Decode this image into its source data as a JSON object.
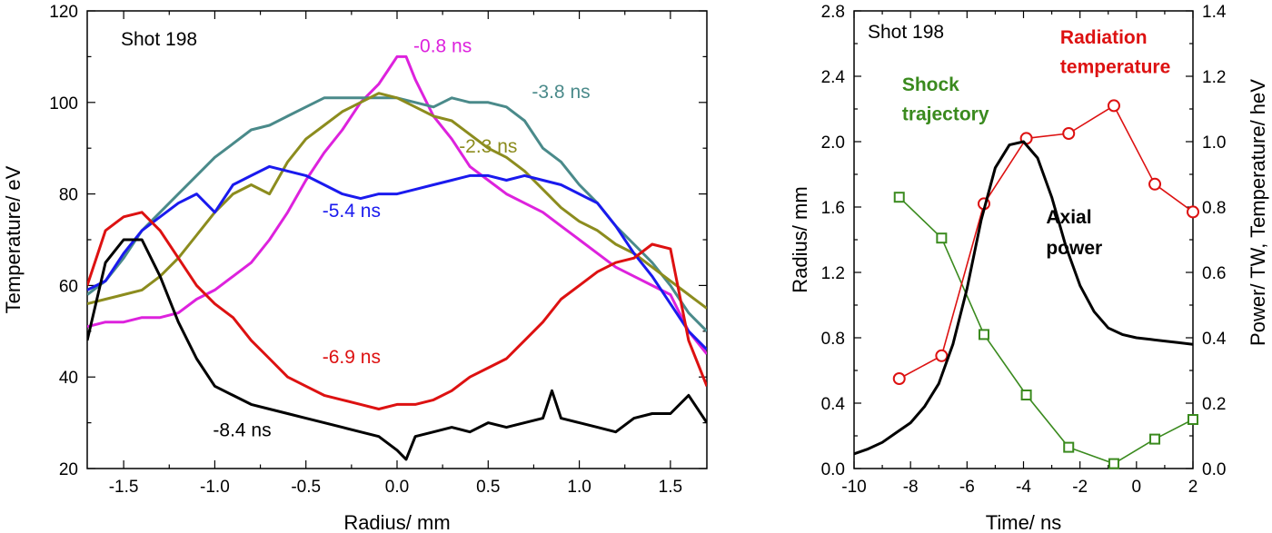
{
  "chart_data": [
    {
      "type": "line",
      "panel_label": "Shot 198",
      "xlabel": "Radius/ mm",
      "ylabel": "Temperature/ eV",
      "xlim": [
        -1.7,
        1.7
      ],
      "ylim": [
        20,
        120
      ],
      "xticks": [
        -1.5,
        -1.0,
        -0.5,
        0.0,
        0.5,
        1.0,
        1.5
      ],
      "xtick_labels": [
        "-1.5",
        "-1.0",
        "-0.5",
        "0.0",
        "0.5",
        "1.0",
        "1.5"
      ],
      "yticks": [
        20,
        40,
        60,
        80,
        100,
        120
      ],
      "ytick_labels": [
        "20",
        "40",
        "60",
        "80",
        "100",
        "120"
      ],
      "grid": false,
      "series": [
        {
          "name": "-0.8 ns",
          "color": "#dd22dd",
          "x": [
            -1.7,
            -1.6,
            -1.5,
            -1.4,
            -1.3,
            -1.2,
            -1.1,
            -1.0,
            -0.9,
            -0.8,
            -0.7,
            -0.6,
            -0.5,
            -0.4,
            -0.3,
            -0.2,
            -0.1,
            -0.05,
            0.0,
            0.05,
            0.1,
            0.2,
            0.3,
            0.4,
            0.5,
            0.6,
            0.7,
            0.8,
            0.9,
            1.0,
            1.1,
            1.2,
            1.3,
            1.4,
            1.5,
            1.6,
            1.7
          ],
          "y": [
            51,
            52,
            52,
            53,
            53,
            54,
            57,
            59,
            62,
            65,
            70,
            76,
            83,
            89,
            94,
            100,
            104,
            107,
            110,
            110,
            105,
            97,
            92,
            86,
            83,
            80,
            78,
            76,
            73,
            70,
            67,
            64,
            62,
            60,
            58,
            50,
            45
          ]
        },
        {
          "name": "-3.8 ns",
          "color": "#4a8a8a",
          "x": [
            -1.7,
            -1.6,
            -1.5,
            -1.4,
            -1.3,
            -1.2,
            -1.1,
            -1.0,
            -0.9,
            -0.8,
            -0.7,
            -0.6,
            -0.5,
            -0.4,
            -0.3,
            -0.2,
            -0.1,
            0.0,
            0.1,
            0.2,
            0.3,
            0.4,
            0.5,
            0.6,
            0.7,
            0.8,
            0.9,
            1.0,
            1.1,
            1.2,
            1.3,
            1.4,
            1.5,
            1.6,
            1.7
          ],
          "y": [
            58,
            61,
            66,
            72,
            76,
            80,
            84,
            88,
            91,
            94,
            95,
            97,
            99,
            101,
            101,
            101,
            101,
            101,
            100,
            99,
            101,
            100,
            100,
            99,
            96,
            90,
            87,
            82,
            78,
            73,
            69,
            65,
            60,
            54,
            50
          ]
        },
        {
          "name": "-2.3 ns",
          "color": "#8c8c1e",
          "x": [
            -1.7,
            -1.6,
            -1.5,
            -1.4,
            -1.3,
            -1.2,
            -1.1,
            -1.0,
            -0.9,
            -0.8,
            -0.7,
            -0.6,
            -0.5,
            -0.4,
            -0.3,
            -0.2,
            -0.1,
            0.0,
            0.1,
            0.2,
            0.3,
            0.4,
            0.5,
            0.6,
            0.7,
            0.8,
            0.9,
            1.0,
            1.1,
            1.2,
            1.3,
            1.4,
            1.5,
            1.6,
            1.7
          ],
          "y": [
            56,
            57,
            58,
            59,
            62,
            66,
            71,
            76,
            80,
            82,
            80,
            87,
            92,
            95,
            98,
            100,
            102,
            101,
            99,
            97,
            96,
            93,
            90,
            88,
            85,
            81,
            77,
            74,
            72,
            69,
            67,
            64,
            61,
            58,
            55
          ]
        },
        {
          "name": "-5.4 ns",
          "color": "#1a1aee",
          "x": [
            -1.7,
            -1.6,
            -1.5,
            -1.4,
            -1.3,
            -1.2,
            -1.1,
            -1.0,
            -0.9,
            -0.8,
            -0.7,
            -0.6,
            -0.5,
            -0.4,
            -0.3,
            -0.2,
            -0.1,
            0.0,
            0.1,
            0.2,
            0.3,
            0.4,
            0.5,
            0.6,
            0.7,
            0.8,
            0.9,
            1.0,
            1.1,
            1.2,
            1.3,
            1.4,
            1.5,
            1.6,
            1.7
          ],
          "y": [
            59,
            61,
            67,
            72,
            75,
            78,
            80,
            76,
            82,
            84,
            86,
            85,
            84,
            82,
            80,
            79,
            80,
            80,
            81,
            82,
            83,
            84,
            84,
            83,
            84,
            83,
            82,
            80,
            78,
            73,
            67,
            62,
            56,
            50,
            46
          ]
        },
        {
          "name": "-6.9 ns",
          "color": "#dd1111",
          "x": [
            -1.7,
            -1.6,
            -1.5,
            -1.4,
            -1.3,
            -1.2,
            -1.1,
            -1.0,
            -0.9,
            -0.8,
            -0.7,
            -0.6,
            -0.5,
            -0.4,
            -0.3,
            -0.2,
            -0.1,
            0.0,
            0.1,
            0.2,
            0.3,
            0.4,
            0.5,
            0.6,
            0.7,
            0.8,
            0.9,
            1.0,
            1.1,
            1.2,
            1.3,
            1.4,
            1.5,
            1.6,
            1.7
          ],
          "y": [
            60,
            72,
            75,
            76,
            72,
            66,
            60,
            56,
            53,
            48,
            44,
            40,
            38,
            36,
            35,
            34,
            33,
            34,
            34,
            35,
            37,
            40,
            42,
            44,
            48,
            52,
            57,
            60,
            63,
            65,
            66,
            69,
            68,
            48,
            38
          ]
        },
        {
          "name": "-8.4 ns",
          "color": "#000000",
          "x": [
            -1.7,
            -1.6,
            -1.5,
            -1.4,
            -1.3,
            -1.2,
            -1.1,
            -1.0,
            -0.9,
            -0.8,
            -0.7,
            -0.6,
            -0.5,
            -0.4,
            -0.3,
            -0.2,
            -0.1,
            0.0,
            0.05,
            0.1,
            0.2,
            0.3,
            0.4,
            0.5,
            0.6,
            0.7,
            0.8,
            0.85,
            0.9,
            1.0,
            1.1,
            1.2,
            1.3,
            1.4,
            1.5,
            1.6,
            1.7
          ],
          "y": [
            48,
            65,
            70,
            70,
            62,
            52,
            44,
            38,
            36,
            34,
            33,
            32,
            31,
            30,
            29,
            28,
            27,
            24,
            22,
            27,
            28,
            29,
            28,
            30,
            29,
            30,
            31,
            37,
            31,
            30,
            29,
            28,
            31,
            32,
            32,
            36,
            30
          ]
        }
      ],
      "annotations": [
        {
          "text": "-0.8 ns",
          "x": 0.25,
          "y": 111,
          "color": "#dd22dd"
        },
        {
          "text": "-3.8 ns",
          "x": 0.9,
          "y": 101,
          "color": "#4a8a8a"
        },
        {
          "text": "-2.3 ns",
          "x": 0.5,
          "y": 89,
          "color": "#8c8c1e"
        },
        {
          "text": "-5.4 ns",
          "x": -0.25,
          "y": 75,
          "color": "#1a1aee"
        },
        {
          "text": "-6.9 ns",
          "x": -0.25,
          "y": 43,
          "color": "#dd1111"
        },
        {
          "text": "-8.4 ns",
          "x": -0.85,
          "y": 27,
          "color": "#000000"
        }
      ]
    },
    {
      "type": "line",
      "panel_label": "Shot 198",
      "xlabel": "Time/ ns",
      "ylabel": "Radius/ mm",
      "ylabel_right": "Power/ TW, Temperature/ heV",
      "xlim": [
        -10,
        2
      ],
      "ylim": [
        0.0,
        2.8
      ],
      "ylim_right": [
        0.0,
        1.4
      ],
      "xticks": [
        -10,
        -8,
        -6,
        -4,
        -2,
        0,
        2
      ],
      "xtick_labels": [
        "-10",
        "-8",
        "-6",
        "-4",
        "-2",
        "0",
        "2"
      ],
      "yticks": [
        0.0,
        0.4,
        0.8,
        1.2,
        1.6,
        2.0,
        2.4,
        2.8
      ],
      "ytick_labels": [
        "0.0",
        "0.4",
        "0.8",
        "1.2",
        "1.6",
        "2.0",
        "2.4",
        "2.8"
      ],
      "yticks_right": [
        0.0,
        0.2,
        0.4,
        0.6,
        0.8,
        1.0,
        1.2,
        1.4
      ],
      "ytick_labels_right": [
        "0.0",
        "0.2",
        "0.4",
        "0.6",
        "0.8",
        "1.0",
        "1.2",
        "1.4"
      ],
      "grid": false,
      "series": [
        {
          "name": "Shock trajectory",
          "color": "#3a8a1e",
          "marker": "square",
          "axis": "left",
          "x": [
            -8.4,
            -6.9,
            -5.4,
            -3.9,
            -2.4,
            -0.8,
            0.65,
            2.0
          ],
          "y": [
            1.66,
            1.41,
            0.82,
            0.45,
            0.13,
            0.03,
            0.18,
            0.3
          ]
        },
        {
          "name": "Radiation temperature",
          "color": "#dd1111",
          "marker": "circle",
          "axis": "right",
          "x": [
            -8.4,
            -6.9,
            -5.4,
            -3.9,
            -2.4,
            -0.8,
            0.65,
            2.0
          ],
          "y": [
            0.275,
            0.345,
            0.81,
            1.01,
            1.025,
            1.11,
            0.87,
            0.785
          ]
        },
        {
          "name": "Axial power",
          "color": "#000000",
          "marker": "none",
          "axis": "right",
          "x": [
            -10,
            -9.5,
            -9,
            -8.5,
            -8,
            -7.5,
            -7,
            -6.5,
            -6,
            -5.5,
            -5,
            -4.5,
            -4,
            -3.5,
            -3,
            -2.5,
            -2,
            -1.5,
            -1,
            -0.5,
            0,
            0.5,
            1,
            1.5,
            2
          ],
          "y": [
            0.045,
            0.06,
            0.08,
            0.11,
            0.14,
            0.19,
            0.26,
            0.38,
            0.55,
            0.76,
            0.92,
            0.99,
            1.0,
            0.95,
            0.83,
            0.68,
            0.56,
            0.48,
            0.43,
            0.41,
            0.4,
            0.395,
            0.39,
            0.385,
            0.38
          ]
        }
      ],
      "annotations": [
        {
          "text": "Radiation",
          "x": -2.7,
          "y": 2.6,
          "color": "#dd1111"
        },
        {
          "text": "temperature",
          "x": -2.7,
          "y": 2.42,
          "color": "#dd1111"
        },
        {
          "text": "Shock",
          "x": -8.3,
          "y": 2.31,
          "color": "#3a8a1e"
        },
        {
          "text": "trajectory",
          "x": -8.3,
          "y": 2.13,
          "color": "#3a8a1e"
        },
        {
          "text": "Axial",
          "x": -3.2,
          "y": 1.5,
          "color": "#000000"
        },
        {
          "text": "power",
          "x": -3.2,
          "y": 1.31,
          "color": "#000000"
        }
      ]
    }
  ]
}
